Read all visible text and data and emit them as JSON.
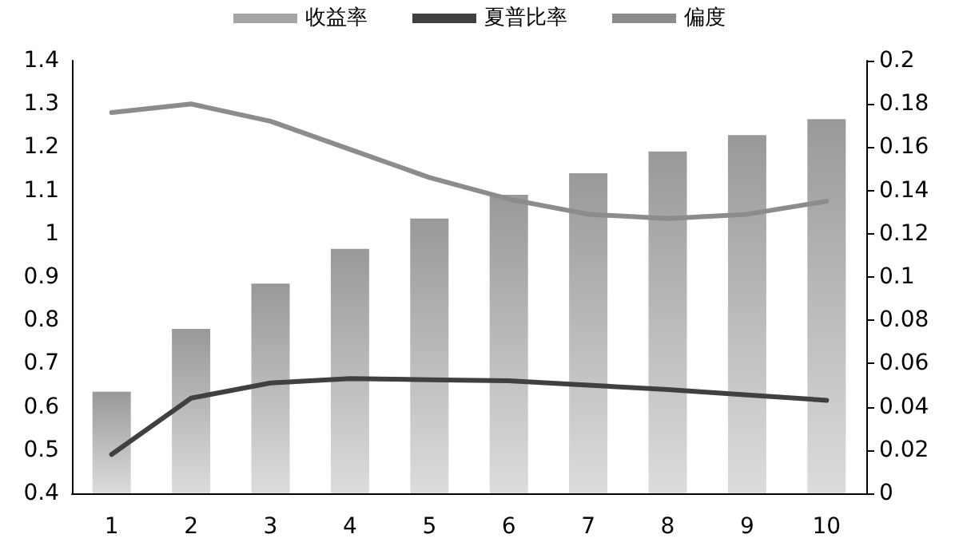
{
  "chart_data": {
    "type": "bar",
    "categories": [
      "1",
      "2",
      "3",
      "4",
      "5",
      "6",
      "7",
      "8",
      "9",
      "10"
    ],
    "series": [
      {
        "name": "收益率",
        "color": "#a6a6a6",
        "values": [
          0.635,
          0.78,
          0.885,
          0.965,
          1.035,
          1.09,
          1.14,
          1.19,
          1.228,
          1.265
        ]
      },
      {
        "name": "夏普比率",
        "type": "line",
        "axis": "y2",
        "color": "#404040",
        "values": [
          0.018,
          0.044,
          0.051,
          0.053,
          0.0525,
          0.052,
          0.05,
          0.048,
          0.0455,
          0.043
        ]
      },
      {
        "name": "偏度",
        "type": "line",
        "axis": "y2",
        "color": "#8c8c8c",
        "values": [
          0.176,
          0.18,
          0.172,
          0.159,
          0.146,
          0.136,
          0.129,
          0.127,
          0.129,
          0.135
        ]
      }
    ],
    "ylim": [
      0.4,
      1.4
    ],
    "yticks": [
      0.4,
      0.5,
      0.6,
      0.7,
      0.8,
      0.9,
      1,
      1.1,
      1.2,
      1.3,
      1.4
    ],
    "y2lim": [
      0,
      0.2
    ],
    "y2ticks": [
      0,
      0.02,
      0.04,
      0.06,
      0.08,
      0.1,
      0.12,
      0.14,
      0.16,
      0.18,
      0.2
    ],
    "grid": false,
    "legend": "top",
    "marker": "none"
  }
}
